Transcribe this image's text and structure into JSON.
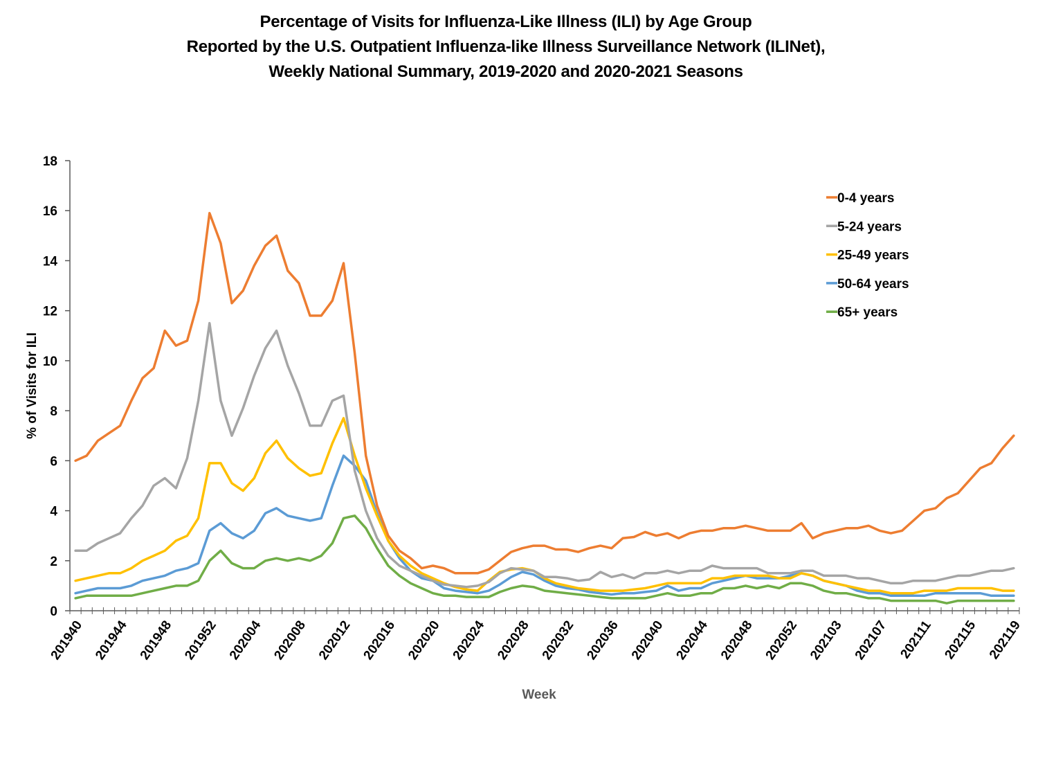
{
  "chart_data": {
    "type": "line",
    "title": [
      "Percentage of Visits for Influenza-Like Illness (ILI) by Age Group",
      "Reported by the U.S. Outpatient Influenza-like Illness Surveillance Network (ILINet),",
      "Weekly National Summary, 2019-2020 and 2020-2021 Seasons"
    ],
    "xlabel": "Week",
    "ylabel": "% of Visits for ILI",
    "ylim": [
      0,
      18
    ],
    "yticks": [
      0,
      2,
      4,
      6,
      8,
      10,
      12,
      14,
      16,
      18
    ],
    "x_tick_labels": [
      "201940",
      "201944",
      "201948",
      "201952",
      "202004",
      "202008",
      "202012",
      "202016",
      "202020",
      "202024",
      "202028",
      "202032",
      "202036",
      "202040",
      "202044",
      "202048",
      "202052",
      "202103",
      "202107",
      "202111",
      "202115",
      "202119"
    ],
    "x_tick_label_every": 4,
    "grid": false,
    "legend_position": "top-right",
    "x": [
      "201940",
      "201941",
      "201942",
      "201943",
      "201944",
      "201945",
      "201946",
      "201947",
      "201948",
      "201949",
      "201950",
      "201951",
      "201952",
      "202001",
      "202002",
      "202003",
      "202004",
      "202005",
      "202006",
      "202007",
      "202008",
      "202009",
      "202010",
      "202011",
      "202012",
      "202013",
      "202014",
      "202015",
      "202016",
      "202017",
      "202018",
      "202019",
      "202020",
      "202021",
      "202022",
      "202023",
      "202024",
      "202025",
      "202026",
      "202027",
      "202028",
      "202029",
      "202030",
      "202031",
      "202032",
      "202033",
      "202034",
      "202035",
      "202036",
      "202037",
      "202038",
      "202039",
      "202040",
      "202041",
      "202042",
      "202043",
      "202044",
      "202045",
      "202046",
      "202047",
      "202048",
      "202049",
      "202050",
      "202051",
      "202052",
      "202053",
      "202101",
      "202102",
      "202103",
      "202104",
      "202105",
      "202106",
      "202107",
      "202108",
      "202109",
      "202110",
      "202111",
      "202112",
      "202113",
      "202114",
      "202115",
      "202116",
      "202117",
      "202118",
      "202119"
    ],
    "series": [
      {
        "name": "0-4 years",
        "color": "#ED7D31",
        "values": [
          6.0,
          6.2,
          6.8,
          7.1,
          7.4,
          8.4,
          9.3,
          9.7,
          11.2,
          10.6,
          10.8,
          12.4,
          15.9,
          14.7,
          12.3,
          12.8,
          13.8,
          14.6,
          15.0,
          13.6,
          13.1,
          11.8,
          11.8,
          12.4,
          13.9,
          10.3,
          6.2,
          4.2,
          3.0,
          2.4,
          2.1,
          1.7,
          1.8,
          1.7,
          1.5,
          1.5,
          1.5,
          1.65,
          2.0,
          2.35,
          2.5,
          2.6,
          2.6,
          2.45,
          2.45,
          2.35,
          2.5,
          2.6,
          2.5,
          2.9,
          2.95,
          3.15,
          3.0,
          3.1,
          2.9,
          3.1,
          3.2,
          3.2,
          3.3,
          3.3,
          3.4,
          3.3,
          3.2,
          3.2,
          3.2,
          3.5,
          2.9,
          3.1,
          3.2,
          3.3,
          3.3,
          3.4,
          3.2,
          3.1,
          3.2,
          3.6,
          4.0,
          4.1,
          4.5,
          4.7,
          5.2,
          5.7,
          5.9,
          6.5,
          7.0
        ]
      },
      {
        "name": "5-24 years",
        "color": "#A5A5A5",
        "values": [
          2.4,
          2.4,
          2.7,
          2.9,
          3.1,
          3.7,
          4.2,
          5.0,
          5.3,
          4.9,
          6.1,
          8.4,
          11.5,
          8.4,
          7.0,
          8.1,
          9.4,
          10.5,
          11.2,
          9.8,
          8.7,
          7.4,
          7.4,
          8.4,
          8.6,
          5.6,
          4.0,
          2.9,
          2.2,
          1.8,
          1.6,
          1.4,
          1.2,
          1.05,
          1.0,
          0.95,
          1.0,
          1.15,
          1.5,
          1.7,
          1.65,
          1.6,
          1.35,
          1.35,
          1.3,
          1.2,
          1.25,
          1.55,
          1.35,
          1.45,
          1.3,
          1.5,
          1.5,
          1.6,
          1.5,
          1.6,
          1.6,
          1.8,
          1.7,
          1.7,
          1.7,
          1.7,
          1.5,
          1.5,
          1.5,
          1.6,
          1.6,
          1.4,
          1.4,
          1.4,
          1.3,
          1.3,
          1.2,
          1.1,
          1.1,
          1.2,
          1.2,
          1.2,
          1.3,
          1.4,
          1.4,
          1.5,
          1.6,
          1.6,
          1.7
        ]
      },
      {
        "name": "25-49 years",
        "color": "#FFC000",
        "values": [
          1.2,
          1.3,
          1.4,
          1.5,
          1.5,
          1.7,
          2.0,
          2.2,
          2.4,
          2.8,
          3.0,
          3.7,
          5.9,
          5.9,
          5.1,
          4.8,
          5.3,
          6.3,
          6.8,
          6.1,
          5.7,
          5.4,
          5.5,
          6.7,
          7.7,
          6.2,
          4.9,
          3.8,
          2.8,
          2.2,
          1.8,
          1.5,
          1.3,
          1.1,
          0.95,
          0.85,
          0.8,
          1.2,
          1.55,
          1.65,
          1.7,
          1.6,
          1.3,
          1.1,
          1.0,
          0.9,
          0.85,
          0.8,
          0.8,
          0.8,
          0.85,
          0.9,
          1.0,
          1.1,
          1.1,
          1.1,
          1.1,
          1.3,
          1.3,
          1.4,
          1.4,
          1.4,
          1.4,
          1.3,
          1.3,
          1.5,
          1.4,
          1.2,
          1.1,
          1.0,
          0.9,
          0.8,
          0.8,
          0.7,
          0.7,
          0.7,
          0.8,
          0.8,
          0.8,
          0.9,
          0.9,
          0.9,
          0.9,
          0.8,
          0.8
        ]
      },
      {
        "name": "50-64 years",
        "color": "#5B9BD5",
        "values": [
          0.7,
          0.8,
          0.9,
          0.9,
          0.9,
          1.0,
          1.2,
          1.3,
          1.4,
          1.6,
          1.7,
          1.9,
          3.2,
          3.5,
          3.1,
          2.9,
          3.2,
          3.9,
          4.1,
          3.8,
          3.7,
          3.6,
          3.7,
          5.0,
          6.2,
          5.8,
          5.2,
          3.9,
          2.8,
          2.1,
          1.6,
          1.3,
          1.2,
          0.9,
          0.8,
          0.75,
          0.7,
          0.8,
          1.05,
          1.35,
          1.55,
          1.45,
          1.2,
          1.0,
          0.9,
          0.85,
          0.75,
          0.7,
          0.65,
          0.7,
          0.7,
          0.75,
          0.8,
          1.0,
          0.8,
          0.9,
          0.9,
          1.1,
          1.2,
          1.3,
          1.4,
          1.3,
          1.3,
          1.3,
          1.4,
          1.5,
          1.4,
          1.2,
          1.1,
          1.0,
          0.8,
          0.7,
          0.7,
          0.6,
          0.6,
          0.6,
          0.6,
          0.7,
          0.7,
          0.7,
          0.7,
          0.7,
          0.6,
          0.6,
          0.6
        ]
      },
      {
        "name": "65+ years",
        "color": "#70AD47",
        "values": [
          0.5,
          0.6,
          0.6,
          0.6,
          0.6,
          0.6,
          0.7,
          0.8,
          0.9,
          1.0,
          1.0,
          1.2,
          2.0,
          2.4,
          1.9,
          1.7,
          1.7,
          2.0,
          2.1,
          2.0,
          2.1,
          2.0,
          2.2,
          2.7,
          3.7,
          3.8,
          3.3,
          2.5,
          1.8,
          1.4,
          1.1,
          0.9,
          0.7,
          0.6,
          0.6,
          0.55,
          0.55,
          0.55,
          0.75,
          0.9,
          1.0,
          0.95,
          0.8,
          0.75,
          0.7,
          0.65,
          0.6,
          0.55,
          0.5,
          0.5,
          0.5,
          0.5,
          0.6,
          0.7,
          0.6,
          0.6,
          0.7,
          0.7,
          0.9,
          0.9,
          1.0,
          0.9,
          1.0,
          0.9,
          1.1,
          1.1,
          1.0,
          0.8,
          0.7,
          0.7,
          0.6,
          0.5,
          0.5,
          0.4,
          0.4,
          0.4,
          0.4,
          0.4,
          0.3,
          0.4,
          0.4,
          0.4,
          0.4,
          0.4,
          0.4
        ]
      }
    ]
  },
  "colors": {
    "axis": "#595959",
    "axis_title_x": "#595959",
    "axis_title_y": "#000000"
  }
}
